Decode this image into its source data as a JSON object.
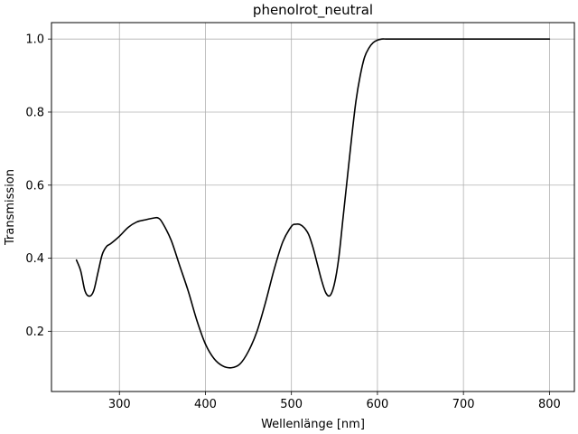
{
  "chart_data": {
    "type": "line",
    "title": "phenolrot_neutral",
    "xlabel": "Wellenlänge [nm]",
    "ylabel": "Transmission",
    "xlim": [
      221,
      829
    ],
    "ylim": [
      0.035,
      1.045
    ],
    "xticks": [
      300,
      400,
      500,
      600,
      700,
      800
    ],
    "yticks": [
      0.2,
      0.4,
      0.6,
      0.8,
      1.0
    ],
    "xtick_labels": [
      "300",
      "400",
      "500",
      "600",
      "700",
      "800"
    ],
    "ytick_labels": [
      "0.2",
      "0.4",
      "0.6",
      "0.8",
      "1.0"
    ],
    "grid": true,
    "series": [
      {
        "color": "#000000",
        "x": [
          250,
          255,
          260,
          265,
          270,
          275,
          280,
          285,
          290,
          300,
          310,
          320,
          330,
          340,
          345,
          350,
          360,
          370,
          380,
          390,
          400,
          410,
          420,
          430,
          440,
          450,
          460,
          470,
          480,
          490,
          500,
          505,
          510,
          515,
          520,
          525,
          530,
          535,
          540,
          545,
          550,
          555,
          560,
          565,
          570,
          575,
          580,
          585,
          590,
          595,
          600,
          605,
          610,
          615,
          620,
          625,
          630,
          640,
          660,
          700,
          750,
          800
        ],
        "y": [
          0.395,
          0.365,
          0.31,
          0.296,
          0.31,
          0.36,
          0.41,
          0.432,
          0.44,
          0.46,
          0.484,
          0.499,
          0.505,
          0.51,
          0.51,
          0.497,
          0.45,
          0.38,
          0.31,
          0.23,
          0.165,
          0.125,
          0.105,
          0.1,
          0.11,
          0.145,
          0.2,
          0.28,
          0.37,
          0.445,
          0.487,
          0.493,
          0.492,
          0.483,
          0.465,
          0.43,
          0.385,
          0.34,
          0.305,
          0.298,
          0.33,
          0.4,
          0.51,
          0.62,
          0.73,
          0.83,
          0.9,
          0.95,
          0.975,
          0.99,
          0.997,
          1.0,
          1.0,
          1.0,
          1.0,
          1.0,
          1.0,
          1.0,
          1.0,
          1.0,
          1.0,
          1.0
        ]
      }
    ]
  }
}
